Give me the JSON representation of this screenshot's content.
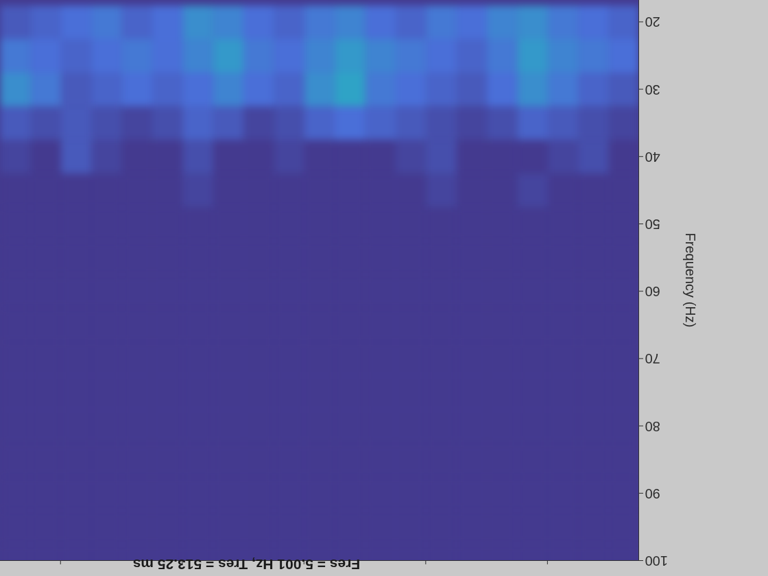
{
  "chart_data": {
    "type": "heatmap",
    "title": "Fres = 5.001 Hz, Tres = 513.25 ms",
    "y_label": "Frequency (Hz)",
    "xlim": [
      0.5,
      11
    ],
    "xticks": [
      2,
      4,
      6,
      8,
      10
    ],
    "ylim": [
      16.7,
      100
    ],
    "yticks": [
      20,
      30,
      40,
      50,
      60,
      70,
      80,
      90,
      100
    ],
    "tick_labels": "y",
    "zlim": [
      0,
      1
    ],
    "x_edges": [
      0.5,
      1,
      1.5,
      2,
      2.5,
      3,
      3.5,
      4,
      4.5,
      5,
      5.5,
      6,
      6.5,
      7,
      7.5,
      8,
      8.5,
      9,
      9.5,
      10,
      10.5,
      11
    ],
    "y_edges": [
      17.5,
      22.5,
      27.5,
      32.5,
      37.5,
      42.5,
      47.5,
      52.5,
      57.5,
      62.5,
      67.5,
      72.5,
      77.5,
      82.5,
      87.5,
      92.5,
      97.5,
      102.5
    ],
    "z": [
      [
        0.45,
        0.5,
        0.55,
        0.65,
        0.6,
        0.5,
        0.55,
        0.45,
        0.5,
        0.6,
        0.55,
        0.45,
        0.5,
        0.6,
        0.65,
        0.5,
        0.45,
        0.55,
        0.5,
        0.45,
        0.4
      ],
      [
        0.5,
        0.55,
        0.6,
        0.7,
        0.55,
        0.45,
        0.5,
        0.55,
        0.6,
        0.7,
        0.6,
        0.5,
        0.55,
        0.7,
        0.6,
        0.5,
        0.55,
        0.5,
        0.45,
        0.5,
        0.55
      ],
      [
        0.4,
        0.45,
        0.55,
        0.65,
        0.5,
        0.4,
        0.45,
        0.5,
        0.55,
        0.75,
        0.65,
        0.45,
        0.5,
        0.6,
        0.5,
        0.45,
        0.5,
        0.45,
        0.4,
        0.55,
        0.65
      ],
      [
        0.3,
        0.35,
        0.4,
        0.45,
        0.35,
        0.3,
        0.35,
        0.4,
        0.45,
        0.5,
        0.45,
        0.35,
        0.3,
        0.4,
        0.45,
        0.35,
        0.3,
        0.35,
        0.4,
        0.35,
        0.4
      ],
      [
        0.2,
        0.35,
        0.3,
        0.25,
        0.2,
        0.25,
        0.35,
        0.3,
        0.2,
        0.25,
        0.2,
        0.3,
        0.25,
        0.2,
        0.35,
        0.25,
        0.2,
        0.3,
        0.4,
        0.25,
        0.3
      ],
      [
        0.15,
        0.2,
        0.2,
        0.3,
        0.15,
        0.2,
        0.3,
        0.25,
        0.15,
        0.2,
        0.15,
        0.25,
        0.2,
        0.15,
        0.3,
        0.2,
        0.15,
        0.2,
        0.25,
        0.15,
        0.2
      ],
      [
        0.1,
        0.15,
        0.15,
        0.25,
        0.1,
        0.15,
        0.25,
        0.2,
        0.1,
        0.15,
        0.1,
        0.15,
        0.1,
        0.1,
        0.2,
        0.25,
        0.15,
        0.1,
        0.15,
        0.1,
        0.1
      ],
      [
        0.1,
        0.1,
        0.1,
        0.15,
        0.1,
        0.1,
        0.15,
        0.1,
        0.1,
        0.15,
        0.1,
        0.1,
        0.1,
        0.1,
        0.1,
        0.15,
        0.1,
        0.1,
        0.1,
        0.1,
        0.1
      ],
      [
        0.15,
        0.1,
        0.1,
        0.15,
        0.1,
        0.15,
        0.1,
        0.1,
        0.1,
        0.15,
        0.1,
        0.1,
        0.1,
        0.15,
        0.1,
        0.1,
        0.1,
        0.15,
        0.1,
        0.1,
        0.1
      ],
      [
        0.1,
        0.1,
        0.1,
        0.15,
        0.1,
        0.1,
        0.15,
        0.1,
        0.1,
        0.1,
        0.1,
        0.1,
        0.1,
        0.15,
        0.1,
        0.1,
        0.1,
        0.1,
        0.1,
        0.1,
        0.1
      ],
      [
        0.1,
        0.1,
        0.1,
        0.1,
        0.1,
        0.1,
        0.15,
        0.1,
        0.1,
        0.15,
        0.1,
        0.1,
        0.1,
        0.1,
        0.1,
        0.1,
        0.1,
        0.1,
        0.1,
        0.15,
        0.1
      ],
      [
        0.1,
        0.1,
        0.1,
        0.1,
        0.15,
        0.1,
        0.15,
        0.1,
        0.1,
        0.15,
        0.1,
        0.1,
        0.1,
        0.1,
        0.1,
        0.1,
        0.1,
        0.1,
        0.1,
        0.1,
        0.1
      ],
      [
        0.2,
        0.1,
        0.1,
        0.1,
        0.15,
        0.1,
        0.15,
        0.1,
        0.1,
        0.15,
        0.1,
        0.1,
        0.1,
        0.1,
        0.1,
        0.1,
        0.1,
        0.1,
        0.1,
        0.1,
        0.1
      ],
      [
        0.1,
        0.1,
        0.15,
        0.1,
        0.1,
        0.1,
        0.1,
        0.1,
        0.1,
        0.1,
        0.1,
        0.1,
        0.1,
        0.1,
        0.1,
        0.1,
        0.1,
        0.1,
        0.1,
        0.1,
        0.1
      ],
      [
        0.1,
        0.1,
        0.1,
        0.1,
        0.1,
        0.1,
        0.1,
        0.1,
        0.1,
        0.1,
        0.1,
        0.12,
        0.1,
        0.1,
        0.1,
        0.1,
        0.1,
        0.1,
        0.1,
        0.1,
        0.1
      ],
      [
        0.1,
        0.1,
        0.1,
        0.1,
        0.1,
        0.1,
        0.1,
        0.1,
        0.1,
        0.1,
        0.1,
        0.1,
        0.1,
        0.1,
        0.1,
        0.1,
        0.1,
        0.1,
        0.1,
        0.1,
        0.1
      ],
      [
        0.1,
        0.1,
        0.1,
        0.1,
        0.1,
        0.1,
        0.1,
        0.1,
        0.1,
        0.15,
        0.1,
        0.1,
        0.1,
        0.1,
        0.1,
        0.1,
        0.1,
        0.1,
        0.1,
        0.1,
        0.1
      ]
    ]
  }
}
